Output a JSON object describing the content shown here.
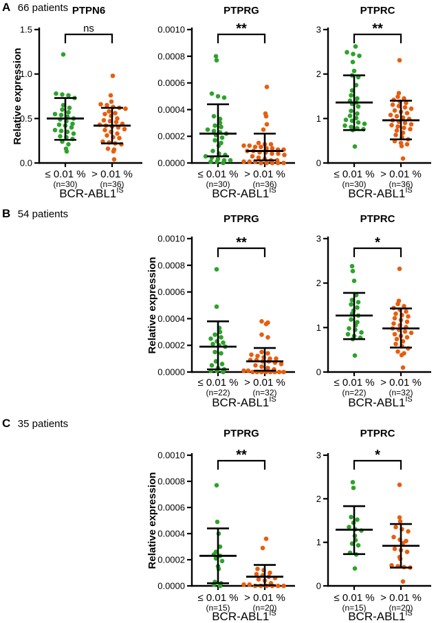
{
  "figure": {
    "panels": [
      {
        "label": "A",
        "patients": "66 patients"
      },
      {
        "label": "B",
        "patients": "54 patients"
      },
      {
        "label": "C",
        "patients": "35 patients"
      }
    ]
  },
  "colors": {
    "green": "#2da32b",
    "orange": "#e85d0e",
    "axis": "#000000",
    "background": "#ffffff"
  },
  "ylabel": "Relative expression",
  "xaxis_title": {
    "main": "BCR-ABL1",
    "sup": "IS"
  },
  "chart_data": [
    {
      "type": "scatter",
      "panel": "A",
      "col": 0,
      "title": "PTPN6",
      "significance": "ns",
      "show_ylabel": true,
      "ylim": [
        0,
        1.5
      ],
      "yticks": [
        "0.0",
        "0.5",
        "1.0",
        "1.5"
      ],
      "groups": [
        {
          "label": "≤ 0.01 %",
          "n": 30,
          "n_label": "(n=30)",
          "color_key": "green",
          "median": 0.5,
          "q1": 0.26,
          "q3": 0.73,
          "values": [
            1.22,
            0.78,
            0.77,
            0.76,
            0.73,
            0.65,
            0.62,
            0.6,
            0.57,
            0.55,
            0.54,
            0.52,
            0.5,
            0.49,
            0.47,
            0.44,
            0.43,
            0.42,
            0.4,
            0.37,
            0.36,
            0.35,
            0.33,
            0.3,
            0.29,
            0.27,
            0.24,
            0.21,
            0.16,
            0.13
          ]
        },
        {
          "label": "> 0.01 %",
          "n": 36,
          "n_label": "(n=36)",
          "color_key": "orange",
          "median": 0.42,
          "q1": 0.22,
          "q3": 0.62,
          "values": [
            0.98,
            0.76,
            0.69,
            0.66,
            0.65,
            0.63,
            0.62,
            0.61,
            0.58,
            0.56,
            0.55,
            0.53,
            0.5,
            0.48,
            0.47,
            0.46,
            0.44,
            0.43,
            0.42,
            0.41,
            0.4,
            0.38,
            0.37,
            0.35,
            0.33,
            0.31,
            0.29,
            0.28,
            0.24,
            0.23,
            0.22,
            0.21,
            0.16,
            0.15,
            0.13,
            0.04
          ]
        }
      ]
    },
    {
      "type": "scatter",
      "panel": "A",
      "col": 1,
      "title": "PTPRG",
      "significance": "**",
      "show_ylabel": false,
      "ylim": [
        0,
        0.001
      ],
      "yticks": [
        "0.0000",
        "0.0002",
        "0.0004",
        "0.0006",
        "0.0008",
        "0.0010"
      ],
      "groups": [
        {
          "label": "≤ 0.01 %",
          "n": 30,
          "n_label": "(n=30)",
          "color_key": "green",
          "median": 0.00022,
          "q1": 5e-05,
          "q3": 0.00044,
          "values": [
            0.0008,
            0.00077,
            0.00052,
            0.0005,
            0.00049,
            0.00035,
            0.00033,
            0.0003,
            0.00028,
            0.00027,
            0.00025,
            0.00024,
            0.00023,
            0.00022,
            0.00021,
            0.00019,
            0.00017,
            0.00015,
            0.00013,
            9e-05,
            7e-05,
            6e-05,
            5e-05,
            4e-05,
            3e-05,
            2e-05,
            2e-05,
            1e-05,
            1e-05,
            0
          ]
        },
        {
          "label": "> 0.01 %",
          "n": 36,
          "n_label": "(n=36)",
          "color_key": "orange",
          "median": 9e-05,
          "q1": 2e-05,
          "q3": 0.00022,
          "values": [
            0.00057,
            0.00037,
            0.00035,
            0.00029,
            0.00025,
            0.00015,
            0.00014,
            0.00014,
            0.00013,
            0.00013,
            0.00012,
            0.00012,
            0.00011,
            0.00011,
            0.0001,
            0.0001,
            9e-05,
            9e-05,
            8e-05,
            8e-05,
            7e-05,
            7e-05,
            6e-05,
            5e-05,
            4e-05,
            3e-05,
            2e-05,
            2e-05,
            1e-05,
            1e-05,
            1e-05,
            0,
            0,
            0,
            0,
            0
          ]
        }
      ]
    },
    {
      "type": "scatter",
      "panel": "A",
      "col": 2,
      "title": "PTPRC",
      "significance": "**",
      "show_ylabel": false,
      "ylim": [
        0,
        3
      ],
      "yticks": [
        "0",
        "1",
        "2",
        "3"
      ],
      "groups": [
        {
          "label": "≤ 0.01 %",
          "n": 30,
          "n_label": "(n=30)",
          "color_key": "green",
          "median": 1.36,
          "q1": 0.74,
          "q3": 1.97,
          "values": [
            2.62,
            2.49,
            2.45,
            2.41,
            2.27,
            2.07,
            1.97,
            1.93,
            1.75,
            1.63,
            1.52,
            1.45,
            1.4,
            1.36,
            1.33,
            1.27,
            1.17,
            1.11,
            1.06,
            1.01,
            0.97,
            0.95,
            0.91,
            0.88,
            0.84,
            0.81,
            0.78,
            0.76,
            0.74,
            0.37
          ]
        },
        {
          "label": "> 0.01 %",
          "n": 36,
          "n_label": "(n=36)",
          "color_key": "orange",
          "median": 0.96,
          "q1": 0.53,
          "q3": 1.4,
          "values": [
            2.31,
            1.57,
            1.49,
            1.45,
            1.42,
            1.38,
            1.35,
            1.31,
            1.28,
            1.25,
            1.22,
            1.18,
            1.15,
            1.12,
            1.08,
            1.05,
            1.02,
            0.99,
            0.96,
            0.93,
            0.9,
            0.87,
            0.85,
            0.82,
            0.79,
            0.76,
            0.73,
            0.68,
            0.63,
            0.58,
            0.53,
            0.49,
            0.45,
            0.42,
            0.38,
            0.1
          ]
        }
      ]
    },
    {
      "type": "scatter",
      "panel": "B",
      "col": 1,
      "title": "PTPRG",
      "significance": "**",
      "show_ylabel": true,
      "ylim": [
        0,
        0.001
      ],
      "yticks": [
        "0.0000",
        "0.0002",
        "0.0004",
        "0.0006",
        "0.0008",
        "0.0010"
      ],
      "groups": [
        {
          "label": "≤ 0.01 %",
          "n": 22,
          "n_label": "(n=22)",
          "color_key": "green",
          "median": 0.00019,
          "q1": 2e-05,
          "q3": 0.00038,
          "values": [
            0.00077,
            0.00049,
            0.00033,
            0.0003,
            0.00028,
            0.00026,
            0.00025,
            0.00023,
            0.00022,
            0.00021,
            0.0002,
            0.00019,
            0.00015,
            0.00014,
            8e-05,
            6e-05,
            5e-05,
            3e-05,
            2e-05,
            1e-05,
            1e-05,
            0
          ]
        },
        {
          "label": "> 0.01 %",
          "n": 32,
          "n_label": "(n=32)",
          "color_key": "orange",
          "median": 8e-05,
          "q1": 1e-05,
          "q3": 0.00018,
          "values": [
            0.00038,
            0.00037,
            0.00036,
            0.00028,
            0.00026,
            0.00015,
            0.00014,
            0.00013,
            0.00012,
            0.00011,
            0.0001,
            0.0001,
            9e-05,
            9e-05,
            8e-05,
            8e-05,
            7e-05,
            6e-05,
            5e-05,
            4e-05,
            3e-05,
            2e-05,
            1e-05,
            1e-05,
            0,
            0,
            0,
            0,
            0,
            0,
            0,
            0
          ]
        }
      ]
    },
    {
      "type": "scatter",
      "panel": "B",
      "col": 2,
      "title": "PTPRC",
      "significance": "*",
      "show_ylabel": false,
      "ylim": [
        0,
        3
      ],
      "yticks": [
        "0",
        "1",
        "2",
        "3"
      ],
      "groups": [
        {
          "label": "≤ 0.01 %",
          "n": 22,
          "n_label": "(n=22)",
          "color_key": "green",
          "median": 1.27,
          "q1": 0.74,
          "q3": 1.78,
          "values": [
            2.38,
            2.27,
            2.05,
            1.73,
            1.62,
            1.57,
            1.52,
            1.45,
            1.38,
            1.31,
            1.27,
            1.18,
            1.12,
            1.05,
            0.98,
            0.95,
            0.89,
            0.85,
            0.81,
            0.77,
            0.74,
            0.37
          ]
        },
        {
          "label": "> 0.01 %",
          "n": 32,
          "n_label": "(n=32)",
          "color_key": "orange",
          "median": 0.98,
          "q1": 0.55,
          "q3": 1.43,
          "values": [
            2.32,
            1.6,
            1.53,
            1.48,
            1.44,
            1.4,
            1.36,
            1.31,
            1.28,
            1.25,
            1.21,
            1.17,
            1.13,
            1.09,
            1.05,
            1.01,
            0.98,
            0.95,
            0.91,
            0.88,
            0.85,
            0.81,
            0.78,
            0.74,
            0.69,
            0.63,
            0.58,
            0.53,
            0.46,
            0.42,
            0.38,
            0.1
          ]
        }
      ]
    },
    {
      "type": "scatter",
      "panel": "C",
      "col": 1,
      "title": "PTPRG",
      "significance": "**",
      "show_ylabel": true,
      "ylim": [
        0,
        0.001
      ],
      "yticks": [
        "0.0000",
        "0.0002",
        "0.0004",
        "0.0006",
        "0.0008",
        "0.0010"
      ],
      "groups": [
        {
          "label": "≤ 0.01 %",
          "n": 15,
          "n_label": "(n=15)",
          "color_key": "green",
          "median": 0.00023,
          "q1": 2e-05,
          "q3": 0.00044,
          "values": [
            0.00077,
            0.00049,
            0.0004,
            0.0003,
            0.00026,
            0.00024,
            0.00023,
            0.00021,
            0.00019,
            0.00015,
            0.00013,
            3e-05,
            2e-05,
            1e-05,
            0
          ]
        },
        {
          "label": "> 0.01 %",
          "n": 20,
          "n_label": "(n=20)",
          "color_key": "orange",
          "median": 7e-05,
          "q1": 5e-06,
          "q3": 0.00016,
          "values": [
            0.00036,
            0.00029,
            0.00013,
            0.00012,
            0.0001,
            9e-05,
            8e-05,
            7e-05,
            6e-05,
            5e-05,
            4e-05,
            2e-05,
            1e-05,
            1e-05,
            0,
            0,
            0,
            0,
            0,
            0
          ]
        }
      ]
    },
    {
      "type": "scatter",
      "panel": "C",
      "col": 2,
      "title": "PTPRC",
      "significance": "*",
      "show_ylabel": false,
      "ylim": [
        0,
        3
      ],
      "yticks": [
        "0",
        "1",
        "2",
        "3"
      ],
      "groups": [
        {
          "label": "≤ 0.01 %",
          "n": 15,
          "n_label": "(n=15)",
          "color_key": "green",
          "median": 1.29,
          "q1": 0.73,
          "q3": 1.83,
          "values": [
            2.38,
            2.25,
            1.58,
            1.52,
            1.45,
            1.35,
            1.3,
            1.27,
            1.15,
            1.05,
            0.97,
            0.93,
            0.76,
            0.72,
            0.4
          ]
        },
        {
          "label": "> 0.01 %",
          "n": 20,
          "n_label": "(n=20)",
          "color_key": "orange",
          "median": 0.92,
          "q1": 0.42,
          "q3": 1.42,
          "values": [
            2.32,
            1.57,
            1.48,
            1.35,
            1.3,
            1.25,
            1.12,
            1.06,
            1.03,
            0.98,
            0.85,
            0.82,
            0.78,
            0.66,
            0.62,
            0.47,
            0.45,
            0.43,
            0.42,
            0.1
          ]
        }
      ]
    }
  ]
}
